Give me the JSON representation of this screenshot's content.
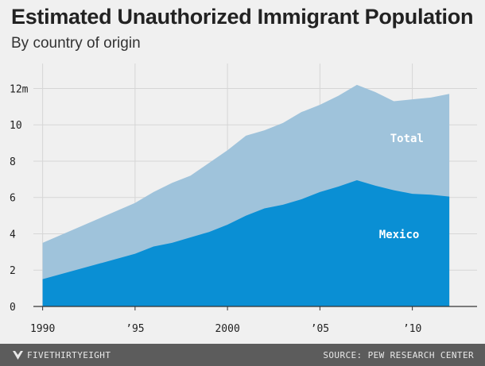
{
  "header": {
    "title": "Estimated Unauthorized Immigrant Population",
    "subtitle": "By country of origin"
  },
  "footer": {
    "brand": "FIVETHIRTYEIGHT",
    "source": "SOURCE: PEW RESEARCH CENTER"
  },
  "colors": {
    "total": "#9fc3db",
    "mexico": "#0a8fd4",
    "background": "#f0f0f0",
    "footer": "#5c5c5c"
  },
  "chart_data": {
    "type": "area",
    "title": "Estimated Unauthorized Immigrant Population",
    "subtitle": "By country of origin",
    "xlabel": "",
    "ylabel": "",
    "xlim": [
      1989.5,
      2013.5
    ],
    "ylim": [
      0,
      12.5
    ],
    "grid": true,
    "x_ticks": [
      {
        "value": 1990,
        "label": "1990"
      },
      {
        "value": 1995,
        "label": "’95"
      },
      {
        "value": 2000,
        "label": "2000"
      },
      {
        "value": 2005,
        "label": "’05"
      },
      {
        "value": 2010,
        "label": "’10"
      }
    ],
    "y_ticks": [
      {
        "value": 0,
        "label": "0"
      },
      {
        "value": 2,
        "label": "2"
      },
      {
        "value": 4,
        "label": "4"
      },
      {
        "value": 6,
        "label": "6"
      },
      {
        "value": 8,
        "label": "8"
      },
      {
        "value": 10,
        "label": "10"
      },
      {
        "value": 12,
        "label": "12m"
      }
    ],
    "x": [
      1990,
      1995,
      1996,
      1997,
      1998,
      1999,
      2000,
      2001,
      2002,
      2003,
      2004,
      2005,
      2006,
      2007,
      2008,
      2009,
      2010,
      2011,
      2012
    ],
    "series": [
      {
        "name": "Total",
        "label": "Total",
        "values": [
          3.5,
          5.7,
          6.3,
          6.8,
          7.2,
          7.9,
          8.6,
          9.4,
          9.7,
          10.1,
          10.7,
          11.1,
          11.6,
          12.2,
          11.8,
          11.3,
          11.4,
          11.5,
          11.7
        ]
      },
      {
        "name": "Mexico",
        "label": "Mexico",
        "values": [
          1.5,
          2.9,
          3.3,
          3.5,
          3.8,
          4.1,
          4.5,
          5.0,
          5.4,
          5.6,
          5.9,
          6.3,
          6.6,
          6.95,
          6.65,
          6.4,
          6.2,
          6.15,
          6.05
        ]
      }
    ]
  }
}
